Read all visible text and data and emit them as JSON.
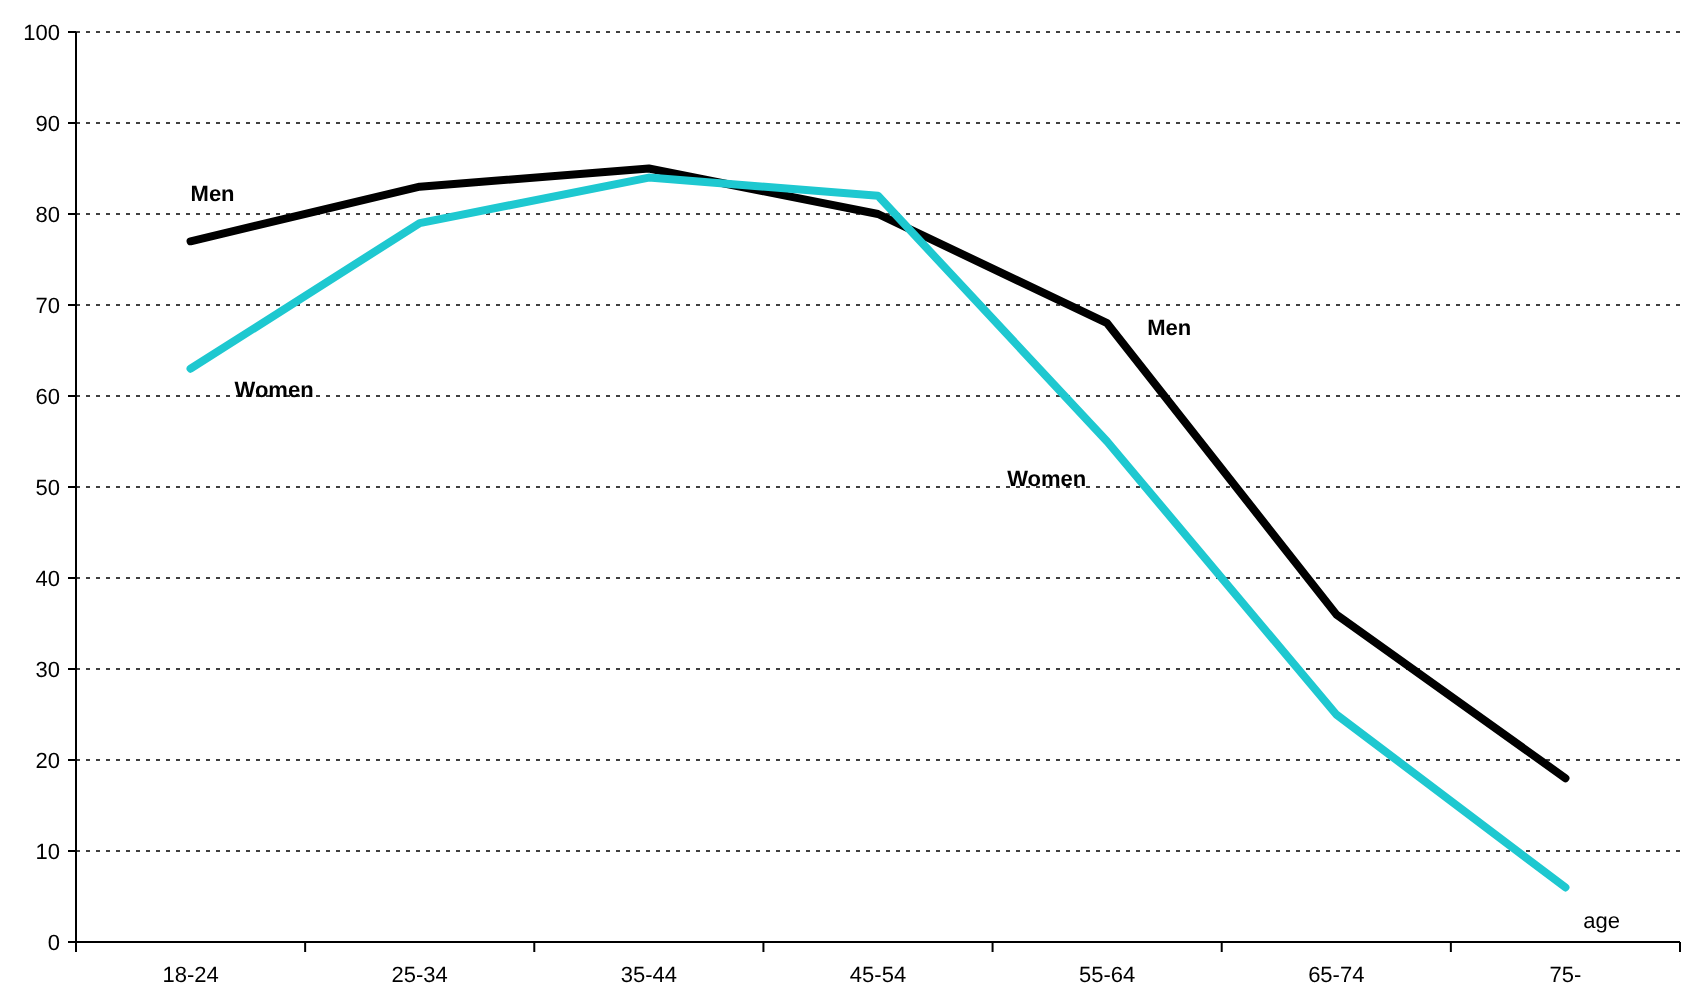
{
  "chart_data": {
    "type": "line",
    "xlabel": "age",
    "categories": [
      "18-24",
      "25-34",
      "35-44",
      "45-54",
      "55-64",
      "65-74",
      "75-"
    ],
    "series": [
      {
        "name": "Men",
        "color": "#000000",
        "values": [
          77,
          83,
          85,
          80,
          68,
          36,
          18
        ]
      },
      {
        "name": "Women",
        "color": "#1ec8d0",
        "values": [
          63,
          79,
          84,
          82,
          55,
          25,
          6
        ]
      }
    ],
    "ylim": [
      0,
      100
    ],
    "yticks": [
      0,
      10,
      20,
      30,
      40,
      50,
      60,
      70,
      80,
      90,
      100
    ],
    "grid": "y",
    "marker": "none",
    "line_style": "solid"
  }
}
